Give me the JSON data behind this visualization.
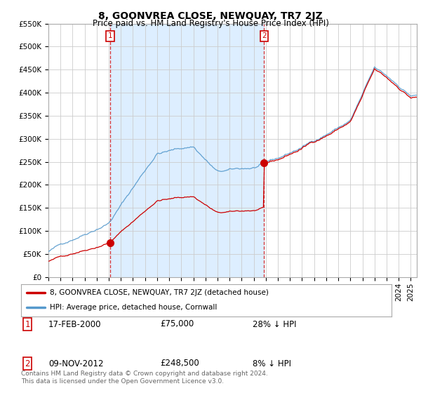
{
  "title": "8, GOONVREA CLOSE, NEWQUAY, TR7 2JZ",
  "subtitle": "Price paid vs. HM Land Registry's House Price Index (HPI)",
  "ylim": [
    0,
    550000
  ],
  "ytick_vals": [
    0,
    50000,
    100000,
    150000,
    200000,
    250000,
    300000,
    350000,
    400000,
    450000,
    500000,
    550000
  ],
  "xmin": 1995.0,
  "xmax": 2025.5,
  "sale1_x": 2000.12,
  "sale1_y": 75000,
  "sale2_x": 2012.86,
  "sale2_y": 248500,
  "red_line_color": "#cc0000",
  "blue_line_color": "#5599cc",
  "shade_color": "#ddeeff",
  "vline_color": "#cc0000",
  "point_color": "#cc0000",
  "legend_entries": [
    "8, GOONVREA CLOSE, NEWQUAY, TR7 2JZ (detached house)",
    "HPI: Average price, detached house, Cornwall"
  ],
  "table_rows": [
    [
      "1",
      "17-FEB-2000",
      "£75,000",
      "28% ↓ HPI"
    ],
    [
      "2",
      "09-NOV-2012",
      "£248,500",
      "8% ↓ HPI"
    ]
  ],
  "footnote": "Contains HM Land Registry data © Crown copyright and database right 2024.\nThis data is licensed under the Open Government Licence v3.0.",
  "bg_color": "#ffffff",
  "grid_color": "#cccccc",
  "title_fontsize": 10,
  "subtitle_fontsize": 8.5,
  "tick_fontsize": 7.5
}
